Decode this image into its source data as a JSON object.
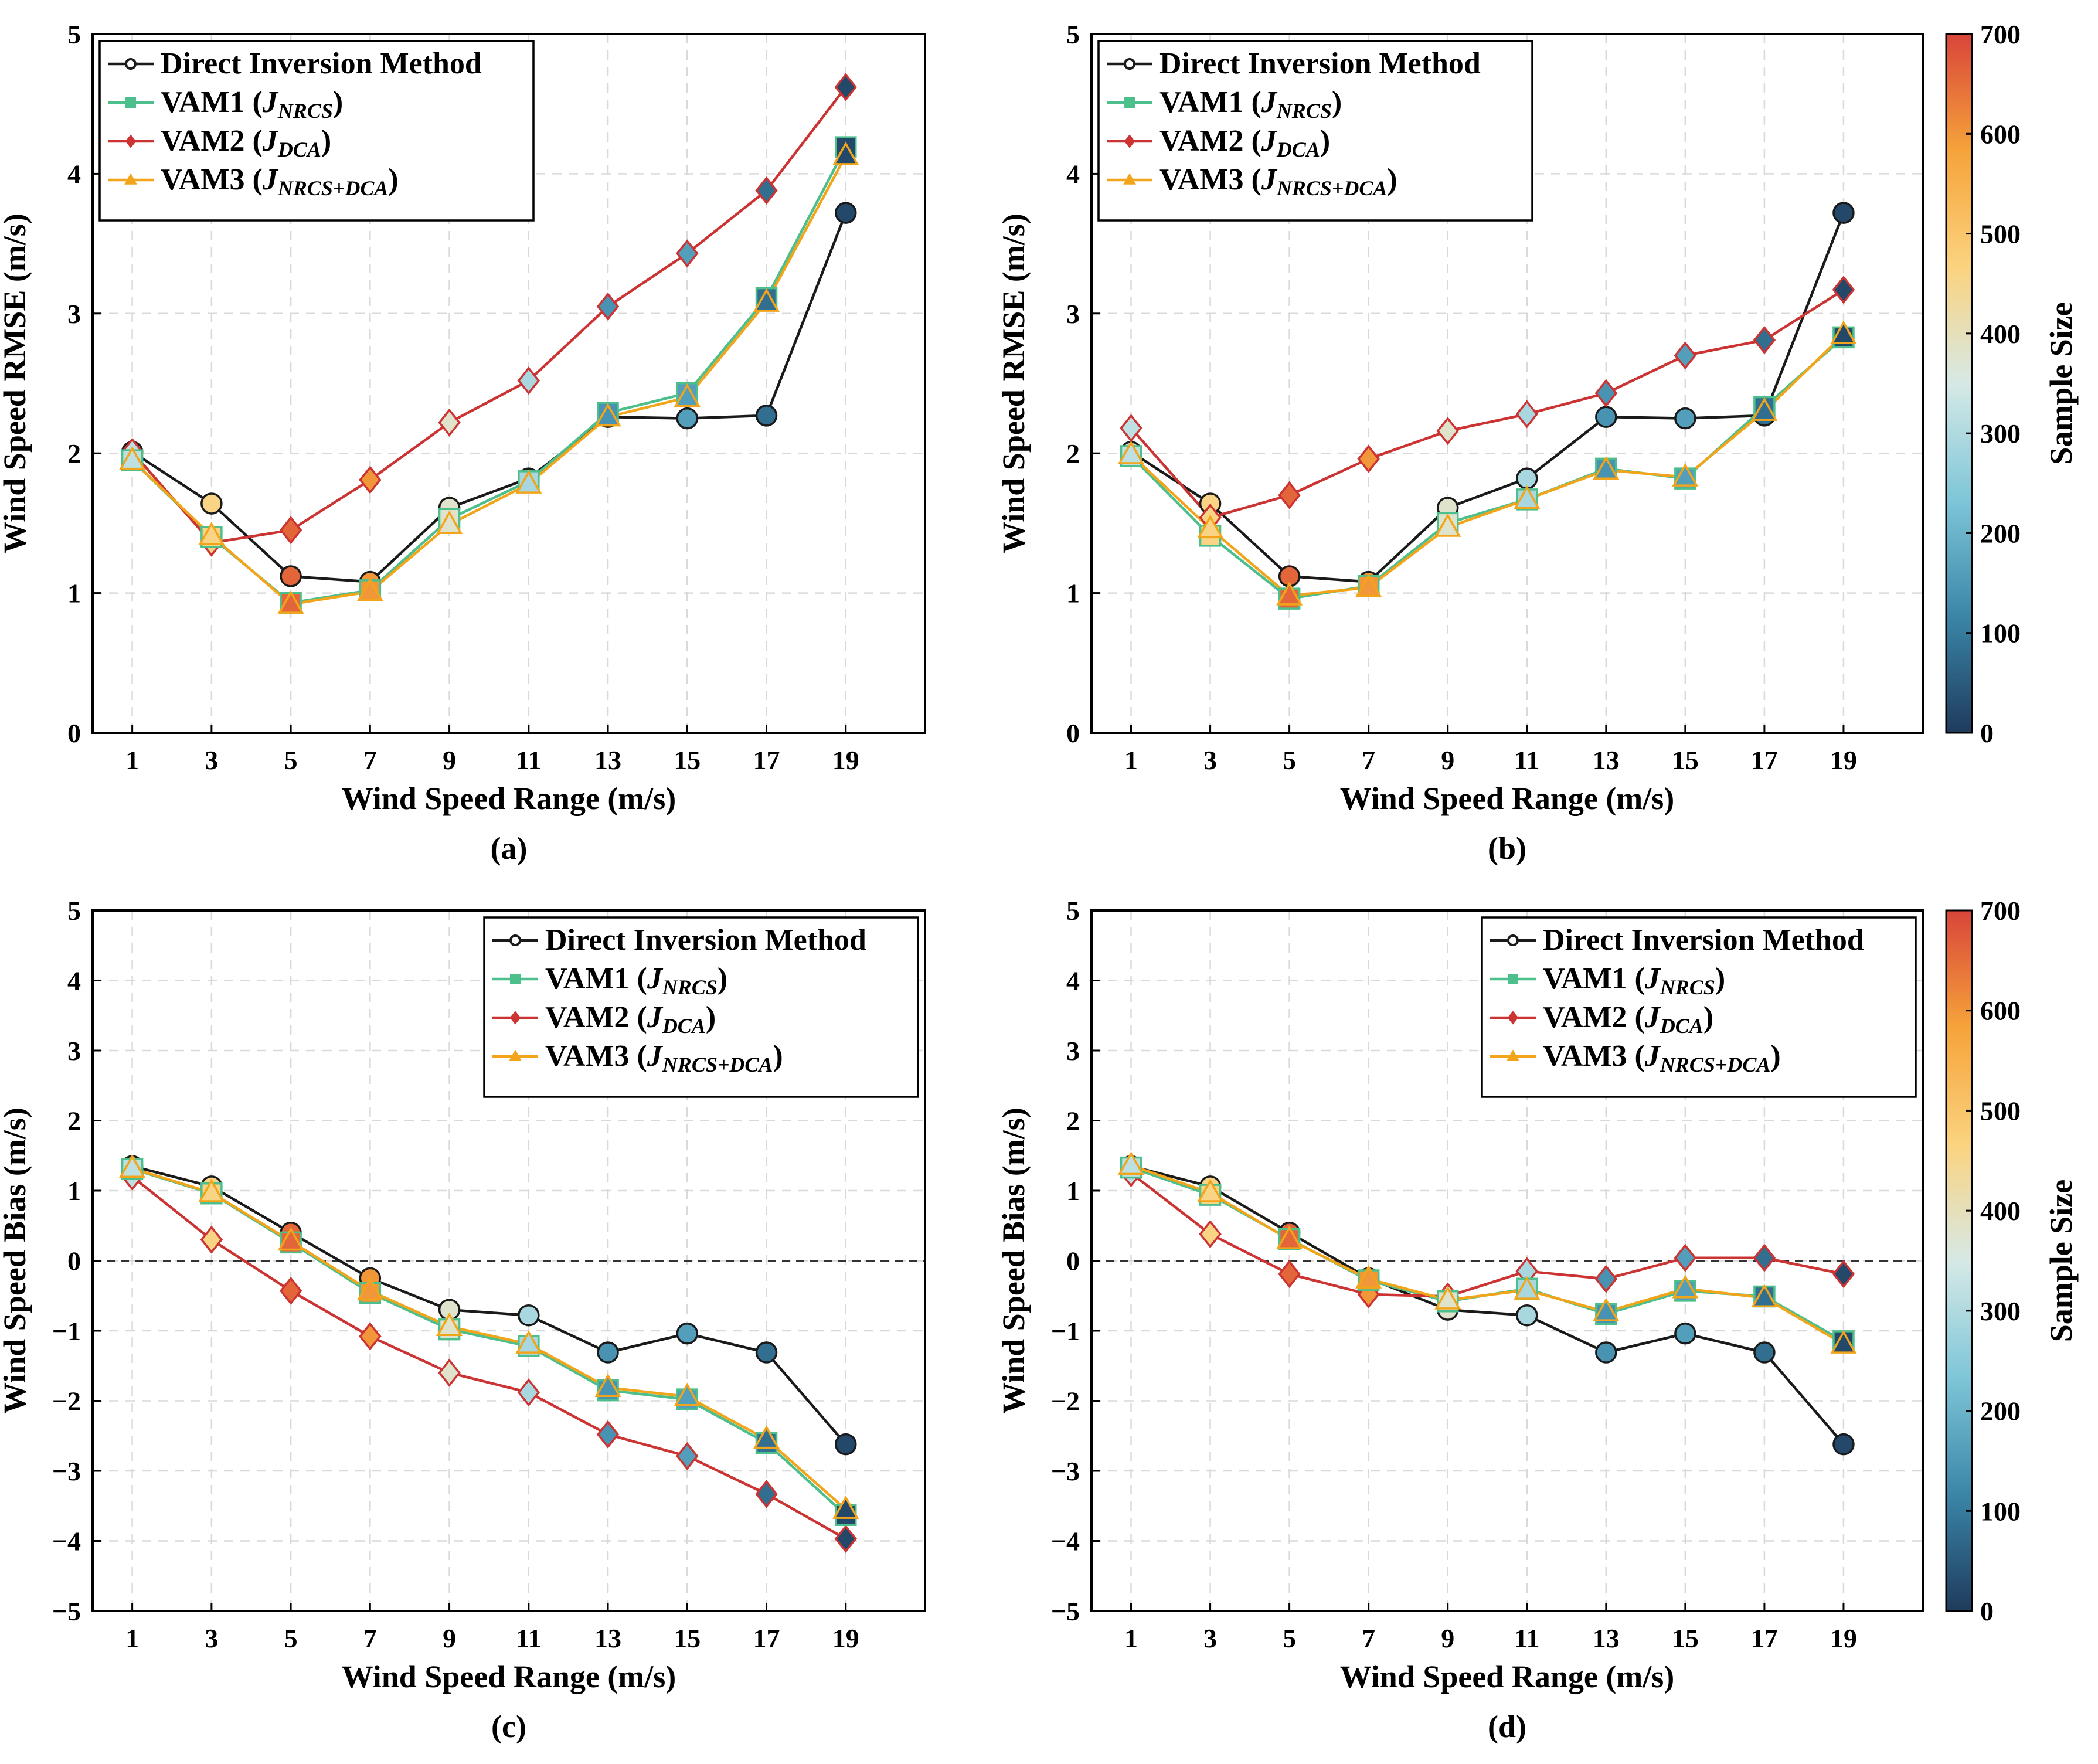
{
  "figure": {
    "colorbar": {
      "label": "Sample Size",
      "ticks": [
        "0",
        "100",
        "200",
        "300",
        "400",
        "500",
        "600",
        "700"
      ],
      "min": 0,
      "max": 700
    }
  },
  "colors": {
    "direct": "#1a1a1a",
    "vam1": "#4dbf8c",
    "vam2": "#cc3333",
    "vam3": "#f2a51a",
    "colormap": [
      "#1f3b5c",
      "#3a86a8",
      "#7ec6d8",
      "#d6e9e6",
      "#fbd37f",
      "#f6a33a",
      "#d9453a"
    ]
  },
  "chart_data": [
    {
      "type": "line",
      "panel_label": "(a)",
      "xlabel": "Wind Speed Range (m/s)",
      "ylabel": "Wind Speed RMSE (m/s)",
      "ylim": [
        0,
        5
      ],
      "yticks": [
        "0",
        "1",
        "2",
        "3",
        "4",
        "5"
      ],
      "x": [
        1,
        3,
        5,
        7,
        9,
        11,
        13,
        15,
        17,
        19
      ],
      "xticks": [
        "1",
        "3",
        "5",
        "7",
        "9",
        "11",
        "13",
        "15",
        "17",
        "19"
      ],
      "legend_position": "top-left",
      "zero_line": false,
      "series": [
        {
          "name": "Direct Inversion Method",
          "key": "direct",
          "marker": "circle",
          "values": [
            2.01,
            1.64,
            1.12,
            1.08,
            1.61,
            1.82,
            2.26,
            2.25,
            2.27,
            3.72
          ],
          "sizes": [
            320,
            460,
            660,
            600,
            380,
            290,
            140,
            160,
            80,
            20
          ]
        },
        {
          "name": "VAM1",
          "sub": "NRCS",
          "key": "vam1",
          "marker": "square",
          "values": [
            1.95,
            1.4,
            0.93,
            1.02,
            1.53,
            1.8,
            2.29,
            2.43,
            3.11,
            4.19
          ],
          "sizes": [
            320,
            460,
            660,
            600,
            380,
            290,
            140,
            160,
            80,
            20
          ]
        },
        {
          "name": "VAM2",
          "sub": "DCA",
          "key": "vam2",
          "marker": "diamond",
          "values": [
            2.01,
            1.36,
            1.45,
            1.81,
            2.22,
            2.52,
            3.05,
            3.43,
            3.88,
            4.62
          ],
          "sizes": [
            320,
            460,
            660,
            600,
            380,
            290,
            140,
            160,
            80,
            20
          ]
        },
        {
          "name": "VAM3",
          "sub": "NRCS+DCA",
          "key": "vam3",
          "marker": "triangle",
          "values": [
            1.95,
            1.41,
            0.92,
            1.01,
            1.49,
            1.78,
            2.26,
            2.4,
            3.08,
            4.13
          ],
          "sizes": [
            320,
            460,
            660,
            600,
            380,
            290,
            140,
            160,
            80,
            20
          ]
        }
      ]
    },
    {
      "type": "line",
      "panel_label": "(b)",
      "xlabel": "Wind Speed Range (m/s)",
      "ylabel": "Wind Speed RMSE (m/s)",
      "ylim": [
        0,
        5
      ],
      "yticks": [
        "0",
        "1",
        "2",
        "3",
        "4",
        "5"
      ],
      "x": [
        1,
        3,
        5,
        7,
        9,
        11,
        13,
        15,
        17,
        19
      ],
      "xticks": [
        "1",
        "3",
        "5",
        "7",
        "9",
        "11",
        "13",
        "15",
        "17",
        "19"
      ],
      "legend_position": "top-left",
      "zero_line": false,
      "series": [
        {
          "name": "Direct Inversion Method",
          "key": "direct",
          "marker": "circle",
          "values": [
            2.01,
            1.64,
            1.12,
            1.08,
            1.61,
            1.82,
            2.26,
            2.25,
            2.27,
            3.72
          ],
          "sizes": [
            320,
            460,
            660,
            600,
            380,
            290,
            140,
            160,
            80,
            20
          ]
        },
        {
          "name": "VAM1",
          "sub": "NRCS",
          "key": "vam1",
          "marker": "square",
          "values": [
            1.98,
            1.41,
            0.96,
            1.05,
            1.5,
            1.67,
            1.89,
            1.82,
            2.33,
            2.83
          ],
          "sizes": [
            320,
            460,
            660,
            600,
            380,
            290,
            140,
            160,
            80,
            20
          ]
        },
        {
          "name": "VAM2",
          "sub": "DCA",
          "key": "vam2",
          "marker": "diamond",
          "values": [
            2.18,
            1.54,
            1.7,
            1.96,
            2.16,
            2.28,
            2.43,
            2.7,
            2.81,
            3.17
          ],
          "sizes": [
            320,
            460,
            660,
            600,
            380,
            290,
            140,
            160,
            80,
            20
          ]
        },
        {
          "name": "VAM3",
          "sub": "NRCS+DCA",
          "key": "vam3",
          "marker": "triangle",
          "values": [
            1.99,
            1.46,
            0.98,
            1.04,
            1.47,
            1.67,
            1.88,
            1.83,
            2.3,
            2.85
          ],
          "sizes": [
            320,
            460,
            660,
            600,
            380,
            290,
            140,
            160,
            80,
            20
          ]
        }
      ]
    },
    {
      "type": "line",
      "panel_label": "(c)",
      "xlabel": "Wind Speed Range (m/s)",
      "ylabel": "Wind Speed Bias (m/s)",
      "ylim": [
        -5,
        5
      ],
      "yticks": [
        "−5",
        "−4",
        "−3",
        "−2",
        "−1",
        "0",
        "1",
        "2",
        "3",
        "4",
        "5"
      ],
      "x": [
        1,
        3,
        5,
        7,
        9,
        11,
        13,
        15,
        17,
        19
      ],
      "xticks": [
        "1",
        "3",
        "5",
        "7",
        "9",
        "11",
        "13",
        "15",
        "17",
        "19"
      ],
      "legend_position": "top-right",
      "zero_line": true,
      "series": [
        {
          "name": "Direct Inversion Method",
          "key": "direct",
          "marker": "circle",
          "values": [
            1.35,
            1.06,
            0.4,
            -0.25,
            -0.7,
            -0.78,
            -1.31,
            -1.04,
            -1.31,
            -2.62
          ],
          "sizes": [
            320,
            460,
            660,
            600,
            380,
            290,
            140,
            160,
            80,
            20
          ]
        },
        {
          "name": "VAM1",
          "sub": "NRCS",
          "key": "vam1",
          "marker": "square",
          "values": [
            1.31,
            0.96,
            0.26,
            -0.46,
            -0.98,
            -1.22,
            -1.85,
            -1.98,
            -2.6,
            -3.63
          ],
          "sizes": [
            320,
            460,
            660,
            600,
            380,
            290,
            140,
            160,
            80,
            20
          ]
        },
        {
          "name": "VAM2",
          "sub": "DCA",
          "key": "vam2",
          "marker": "diamond",
          "values": [
            1.2,
            0.3,
            -0.43,
            -1.08,
            -1.6,
            -1.88,
            -2.48,
            -2.79,
            -3.33,
            -3.97
          ],
          "sizes": [
            320,
            460,
            660,
            600,
            380,
            290,
            140,
            160,
            80,
            20
          ]
        },
        {
          "name": "VAM3",
          "sub": "NRCS+DCA",
          "key": "vam3",
          "marker": "triangle",
          "values": [
            1.32,
            0.97,
            0.28,
            -0.43,
            -0.94,
            -1.19,
            -1.81,
            -1.94,
            -2.55,
            -3.55
          ],
          "sizes": [
            320,
            460,
            660,
            600,
            380,
            290,
            140,
            160,
            80,
            20
          ]
        }
      ]
    },
    {
      "type": "line",
      "panel_label": "(d)",
      "xlabel": "Wind Speed Range (m/s)",
      "ylabel": "Wind Speed Bias (m/s)",
      "ylim": [
        -5,
        5
      ],
      "yticks": [
        "−5",
        "−4",
        "−3",
        "−2",
        "−1",
        "0",
        "1",
        "2",
        "3",
        "4",
        "5"
      ],
      "x": [
        1,
        3,
        5,
        7,
        9,
        11,
        13,
        15,
        17,
        19
      ],
      "xticks": [
        "1",
        "3",
        "5",
        "7",
        "9",
        "11",
        "13",
        "15",
        "17",
        "19"
      ],
      "legend_position": "top-right",
      "zero_line": true,
      "series": [
        {
          "name": "Direct Inversion Method",
          "key": "direct",
          "marker": "circle",
          "values": [
            1.35,
            1.06,
            0.4,
            -0.25,
            -0.7,
            -0.78,
            -1.31,
            -1.04,
            -1.31,
            -2.62
          ],
          "sizes": [
            320,
            460,
            660,
            600,
            380,
            290,
            140,
            160,
            80,
            20
          ]
        },
        {
          "name": "VAM1",
          "sub": "NRCS",
          "key": "vam1",
          "marker": "square",
          "values": [
            1.33,
            0.94,
            0.31,
            -0.28,
            -0.58,
            -0.4,
            -0.76,
            -0.43,
            -0.51,
            -1.15
          ],
          "sizes": [
            320,
            460,
            660,
            600,
            380,
            290,
            140,
            160,
            80,
            20
          ]
        },
        {
          "name": "VAM2",
          "sub": "DCA",
          "key": "vam2",
          "marker": "diamond",
          "values": [
            1.25,
            0.38,
            -0.19,
            -0.48,
            -0.51,
            -0.15,
            -0.26,
            0.04,
            0.04,
            -0.19
          ],
          "sizes": [
            320,
            460,
            660,
            600,
            380,
            290,
            140,
            160,
            80,
            20
          ]
        },
        {
          "name": "VAM3",
          "sub": "NRCS+DCA",
          "key": "vam3",
          "marker": "triangle",
          "values": [
            1.36,
            0.97,
            0.3,
            -0.26,
            -0.56,
            -0.42,
            -0.73,
            -0.4,
            -0.53,
            -1.19
          ],
          "sizes": [
            320,
            460,
            660,
            600,
            380,
            290,
            140,
            160,
            80,
            20
          ]
        }
      ]
    }
  ]
}
